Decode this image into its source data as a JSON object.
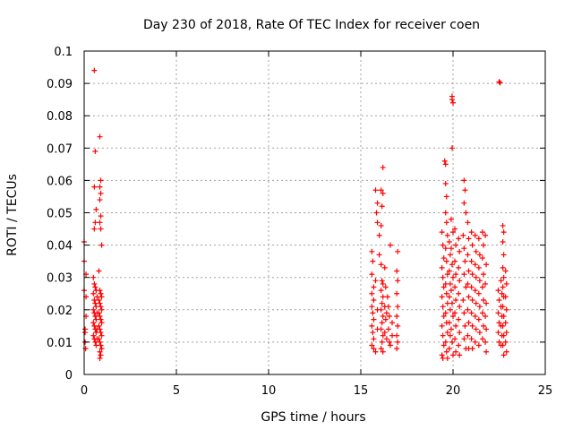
{
  "chart_data": {
    "type": "scatter",
    "title": "Day 230 of 2018, Rate Of TEC Index for receiver coen",
    "xlabel": "GPS time / hours",
    "ylabel": "ROTI / TECUs",
    "xlim": [
      0,
      25
    ],
    "ylim": [
      0,
      0.1
    ],
    "xticks": [
      0,
      5,
      10,
      15,
      20,
      25
    ],
    "xtick_labels": [
      "0",
      "5",
      "10",
      "15",
      "20",
      "25"
    ],
    "yticks": [
      0,
      0.01,
      0.02,
      0.03,
      0.04,
      0.05,
      0.06,
      0.07,
      0.08,
      0.09,
      0.1
    ],
    "ytick_labels": [
      "0",
      "0.01",
      "0.02",
      "0.03",
      "0.04",
      "0.05",
      "0.06",
      "0.07",
      "0.08",
      "0.09",
      "0.1"
    ],
    "grid": true,
    "marker": "+",
    "color": "#ff0000",
    "points": [
      [
        0.0,
        0.035
      ],
      [
        0.0,
        0.041
      ],
      [
        0.05,
        0.013
      ],
      [
        0.05,
        0.01
      ],
      [
        0.1,
        0.024
      ],
      [
        0.1,
        0.031
      ],
      [
        0.1,
        0.018
      ],
      [
        0.0,
        0.026
      ],
      [
        0.05,
        0.014
      ],
      [
        0.08,
        0.008
      ],
      [
        0.55,
        0.094
      ],
      [
        0.6,
        0.069
      ],
      [
        0.55,
        0.058
      ],
      [
        0.6,
        0.047
      ],
      [
        0.55,
        0.045
      ],
      [
        0.65,
        0.051
      ],
      [
        0.5,
        0.03
      ],
      [
        0.55,
        0.028
      ],
      [
        0.6,
        0.027
      ],
      [
        0.65,
        0.026
      ],
      [
        0.5,
        0.025
      ],
      [
        0.55,
        0.023
      ],
      [
        0.6,
        0.022
      ],
      [
        0.65,
        0.021
      ],
      [
        0.5,
        0.02
      ],
      [
        0.55,
        0.019
      ],
      [
        0.6,
        0.018
      ],
      [
        0.65,
        0.017
      ],
      [
        0.5,
        0.016
      ],
      [
        0.55,
        0.015
      ],
      [
        0.6,
        0.014
      ],
      [
        0.65,
        0.013
      ],
      [
        0.5,
        0.012
      ],
      [
        0.55,
        0.011
      ],
      [
        0.6,
        0.01
      ],
      [
        0.65,
        0.009
      ],
      [
        0.7,
        0.024
      ],
      [
        0.7,
        0.019
      ],
      [
        0.7,
        0.014
      ],
      [
        0.7,
        0.011
      ],
      [
        0.85,
        0.0735
      ],
      [
        0.9,
        0.06
      ],
      [
        0.85,
        0.058
      ],
      [
        0.9,
        0.056
      ],
      [
        0.85,
        0.054
      ],
      [
        0.9,
        0.049
      ],
      [
        0.85,
        0.047
      ],
      [
        0.9,
        0.045
      ],
      [
        0.95,
        0.04
      ],
      [
        0.8,
        0.032
      ],
      [
        0.85,
        0.026
      ],
      [
        0.9,
        0.025
      ],
      [
        0.95,
        0.024
      ],
      [
        0.8,
        0.023
      ],
      [
        0.85,
        0.022
      ],
      [
        0.9,
        0.021
      ],
      [
        0.95,
        0.02
      ],
      [
        0.8,
        0.019
      ],
      [
        0.85,
        0.018
      ],
      [
        0.9,
        0.017
      ],
      [
        0.95,
        0.016
      ],
      [
        0.8,
        0.015
      ],
      [
        0.85,
        0.014
      ],
      [
        0.9,
        0.013
      ],
      [
        0.95,
        0.012
      ],
      [
        0.8,
        0.011
      ],
      [
        0.85,
        0.01
      ],
      [
        0.9,
        0.009
      ],
      [
        0.95,
        0.008
      ],
      [
        0.85,
        0.007
      ],
      [
        0.9,
        0.006
      ],
      [
        0.85,
        0.005
      ],
      [
        15.6,
        0.038
      ],
      [
        15.65,
        0.035
      ],
      [
        15.6,
        0.031
      ],
      [
        15.7,
        0.027
      ],
      [
        15.6,
        0.025
      ],
      [
        15.7,
        0.023
      ],
      [
        15.6,
        0.021
      ],
      [
        15.65,
        0.019
      ],
      [
        15.7,
        0.017
      ],
      [
        15.6,
        0.015
      ],
      [
        15.65,
        0.013
      ],
      [
        15.7,
        0.011
      ],
      [
        15.6,
        0.009
      ],
      [
        15.7,
        0.008
      ],
      [
        15.8,
        0.007
      ],
      [
        15.9,
        0.014
      ],
      [
        15.9,
        0.02
      ],
      [
        15.8,
        0.029
      ],
      [
        15.8,
        0.057
      ],
      [
        15.9,
        0.053
      ],
      [
        15.85,
        0.05
      ],
      [
        15.9,
        0.047
      ],
      [
        16.0,
        0.043
      ],
      [
        16.2,
        0.064
      ],
      [
        16.1,
        0.057
      ],
      [
        16.2,
        0.056
      ],
      [
        16.15,
        0.052
      ],
      [
        16.1,
        0.046
      ],
      [
        16.0,
        0.037
      ],
      [
        16.1,
        0.034
      ],
      [
        16.15,
        0.029
      ],
      [
        16.2,
        0.028
      ],
      [
        16.1,
        0.026
      ],
      [
        16.2,
        0.024
      ],
      [
        16.15,
        0.022
      ],
      [
        16.1,
        0.02
      ],
      [
        16.2,
        0.018
      ],
      [
        16.15,
        0.016
      ],
      [
        16.1,
        0.014
      ],
      [
        16.2,
        0.012
      ],
      [
        16.15,
        0.01
      ],
      [
        16.1,
        0.008
      ],
      [
        16.2,
        0.007
      ],
      [
        16.3,
        0.033
      ],
      [
        16.35,
        0.027
      ],
      [
        16.3,
        0.021
      ],
      [
        16.35,
        0.017
      ],
      [
        16.3,
        0.013
      ],
      [
        16.4,
        0.011
      ],
      [
        16.4,
        0.019
      ],
      [
        16.45,
        0.024
      ],
      [
        16.5,
        0.021
      ],
      [
        16.55,
        0.018
      ],
      [
        16.5,
        0.014
      ],
      [
        16.55,
        0.01
      ],
      [
        16.6,
        0.04
      ],
      [
        16.7,
        0.016
      ],
      [
        16.7,
        0.012
      ],
      [
        16.6,
        0.009
      ],
      [
        17.0,
        0.038
      ],
      [
        16.95,
        0.032
      ],
      [
        17.0,
        0.029
      ],
      [
        16.95,
        0.025
      ],
      [
        17.0,
        0.021
      ],
      [
        16.95,
        0.018
      ],
      [
        17.0,
        0.015
      ],
      [
        16.95,
        0.012
      ],
      [
        17.0,
        0.01
      ],
      [
        16.95,
        0.008
      ],
      [
        19.4,
        0.044
      ],
      [
        19.45,
        0.04
      ],
      [
        19.5,
        0.036
      ],
      [
        19.4,
        0.033
      ],
      [
        19.45,
        0.03
      ],
      [
        19.5,
        0.027
      ],
      [
        19.4,
        0.024
      ],
      [
        19.45,
        0.021
      ],
      [
        19.5,
        0.018
      ],
      [
        19.4,
        0.015
      ],
      [
        19.45,
        0.012
      ],
      [
        19.5,
        0.009
      ],
      [
        19.4,
        0.006
      ],
      [
        19.45,
        0.005
      ],
      [
        19.55,
        0.066
      ],
      [
        19.6,
        0.065
      ],
      [
        19.6,
        0.059
      ],
      [
        19.65,
        0.055
      ],
      [
        19.6,
        0.05
      ],
      [
        19.65,
        0.047
      ],
      [
        19.7,
        0.043
      ],
      [
        19.6,
        0.039
      ],
      [
        19.65,
        0.035
      ],
      [
        19.7,
        0.031
      ],
      [
        19.6,
        0.028
      ],
      [
        19.65,
        0.025
      ],
      [
        19.7,
        0.022
      ],
      [
        19.6,
        0.019
      ],
      [
        19.65,
        0.016
      ],
      [
        19.7,
        0.013
      ],
      [
        19.6,
        0.01
      ],
      [
        19.65,
        0.007
      ],
      [
        19.7,
        0.005
      ],
      [
        19.8,
        0.041
      ],
      [
        19.85,
        0.037
      ],
      [
        19.8,
        0.032
      ],
      [
        19.85,
        0.028
      ],
      [
        19.8,
        0.024
      ],
      [
        19.85,
        0.02
      ],
      [
        19.8,
        0.016
      ],
      [
        19.85,
        0.012
      ],
      [
        19.8,
        0.008
      ],
      [
        19.95,
        0.086
      ],
      [
        19.95,
        0.085
      ],
      [
        20.0,
        0.084
      ],
      [
        19.95,
        0.07
      ],
      [
        19.9,
        0.048
      ],
      [
        20.0,
        0.044
      ],
      [
        19.9,
        0.039
      ],
      [
        19.95,
        0.034
      ],
      [
        20.0,
        0.03
      ],
      [
        19.9,
        0.026
      ],
      [
        19.95,
        0.022
      ],
      [
        20.0,
        0.018
      ],
      [
        19.9,
        0.014
      ],
      [
        19.95,
        0.01
      ],
      [
        20.0,
        0.006
      ],
      [
        20.1,
        0.045
      ],
      [
        20.15,
        0.04
      ],
      [
        20.1,
        0.035
      ],
      [
        20.15,
        0.031
      ],
      [
        20.1,
        0.027
      ],
      [
        20.15,
        0.023
      ],
      [
        20.1,
        0.019
      ],
      [
        20.15,
        0.015
      ],
      [
        20.1,
        0.011
      ],
      [
        20.15,
        0.007
      ],
      [
        20.3,
        0.042
      ],
      [
        20.35,
        0.038
      ],
      [
        20.3,
        0.033
      ],
      [
        20.35,
        0.029
      ],
      [
        20.3,
        0.025
      ],
      [
        20.35,
        0.021
      ],
      [
        20.3,
        0.017
      ],
      [
        20.35,
        0.013
      ],
      [
        20.3,
        0.009
      ],
      [
        20.35,
        0.006
      ],
      [
        20.6,
        0.06
      ],
      [
        20.65,
        0.057
      ],
      [
        20.6,
        0.053
      ],
      [
        20.7,
        0.05
      ],
      [
        20.55,
        0.043
      ],
      [
        20.6,
        0.039
      ],
      [
        20.65,
        0.035
      ],
      [
        20.6,
        0.031
      ],
      [
        20.7,
        0.027
      ],
      [
        20.55,
        0.023
      ],
      [
        20.6,
        0.019
      ],
      [
        20.65,
        0.015
      ],
      [
        20.6,
        0.011
      ],
      [
        20.7,
        0.008
      ],
      [
        20.8,
        0.047
      ],
      [
        20.85,
        0.042
      ],
      [
        20.8,
        0.037
      ],
      [
        20.85,
        0.032
      ],
      [
        20.8,
        0.028
      ],
      [
        20.85,
        0.024
      ],
      [
        20.8,
        0.02
      ],
      [
        20.85,
        0.016
      ],
      [
        20.8,
        0.012
      ],
      [
        20.85,
        0.008
      ],
      [
        21.0,
        0.044
      ],
      [
        21.05,
        0.04
      ],
      [
        21.0,
        0.035
      ],
      [
        21.05,
        0.031
      ],
      [
        21.0,
        0.027
      ],
      [
        21.05,
        0.023
      ],
      [
        21.0,
        0.019
      ],
      [
        21.05,
        0.015
      ],
      [
        21.0,
        0.011
      ],
      [
        21.05,
        0.008
      ],
      [
        21.2,
        0.043
      ],
      [
        21.25,
        0.038
      ],
      [
        21.2,
        0.034
      ],
      [
        21.25,
        0.03
      ],
      [
        21.2,
        0.026
      ],
      [
        21.25,
        0.022
      ],
      [
        21.2,
        0.018
      ],
      [
        21.25,
        0.014
      ],
      [
        21.2,
        0.01
      ],
      [
        21.4,
        0.042
      ],
      [
        21.45,
        0.037
      ],
      [
        21.4,
        0.033
      ],
      [
        21.45,
        0.029
      ],
      [
        21.4,
        0.025
      ],
      [
        21.45,
        0.021
      ],
      [
        21.4,
        0.017
      ],
      [
        21.45,
        0.013
      ],
      [
        21.4,
        0.009
      ],
      [
        21.6,
        0.044
      ],
      [
        21.65,
        0.04
      ],
      [
        21.6,
        0.036
      ],
      [
        21.65,
        0.031
      ],
      [
        21.6,
        0.027
      ],
      [
        21.65,
        0.023
      ],
      [
        21.6,
        0.019
      ],
      [
        21.65,
        0.015
      ],
      [
        21.6,
        0.011
      ],
      [
        21.75,
        0.043
      ],
      [
        21.8,
        0.034
      ],
      [
        21.75,
        0.028
      ],
      [
        21.8,
        0.022
      ],
      [
        21.75,
        0.018
      ],
      [
        21.8,
        0.014
      ],
      [
        21.75,
        0.01
      ],
      [
        21.8,
        0.007
      ],
      [
        22.5,
        0.0905
      ],
      [
        22.55,
        0.0902
      ],
      [
        22.45,
        0.026
      ],
      [
        22.5,
        0.023
      ],
      [
        22.45,
        0.019
      ],
      [
        22.5,
        0.016
      ],
      [
        22.45,
        0.013
      ],
      [
        22.5,
        0.01
      ],
      [
        22.6,
        0.029
      ],
      [
        22.65,
        0.025
      ],
      [
        22.6,
        0.021
      ],
      [
        22.65,
        0.018
      ],
      [
        22.6,
        0.015
      ],
      [
        22.65,
        0.012
      ],
      [
        22.6,
        0.009
      ],
      [
        22.7,
        0.046
      ],
      [
        22.75,
        0.044
      ],
      [
        22.7,
        0.041
      ],
      [
        22.75,
        0.037
      ],
      [
        22.7,
        0.033
      ],
      [
        22.75,
        0.03
      ],
      [
        22.7,
        0.027
      ],
      [
        22.75,
        0.024
      ],
      [
        22.7,
        0.021
      ],
      [
        22.75,
        0.018
      ],
      [
        22.7,
        0.015
      ],
      [
        22.75,
        0.012
      ],
      [
        22.7,
        0.009
      ],
      [
        22.75,
        0.006
      ],
      [
        22.85,
        0.032
      ],
      [
        22.9,
        0.028
      ],
      [
        22.85,
        0.024
      ],
      [
        22.9,
        0.02
      ],
      [
        22.85,
        0.016
      ],
      [
        22.9,
        0.013
      ],
      [
        22.85,
        0.01
      ],
      [
        22.9,
        0.007
      ]
    ]
  }
}
